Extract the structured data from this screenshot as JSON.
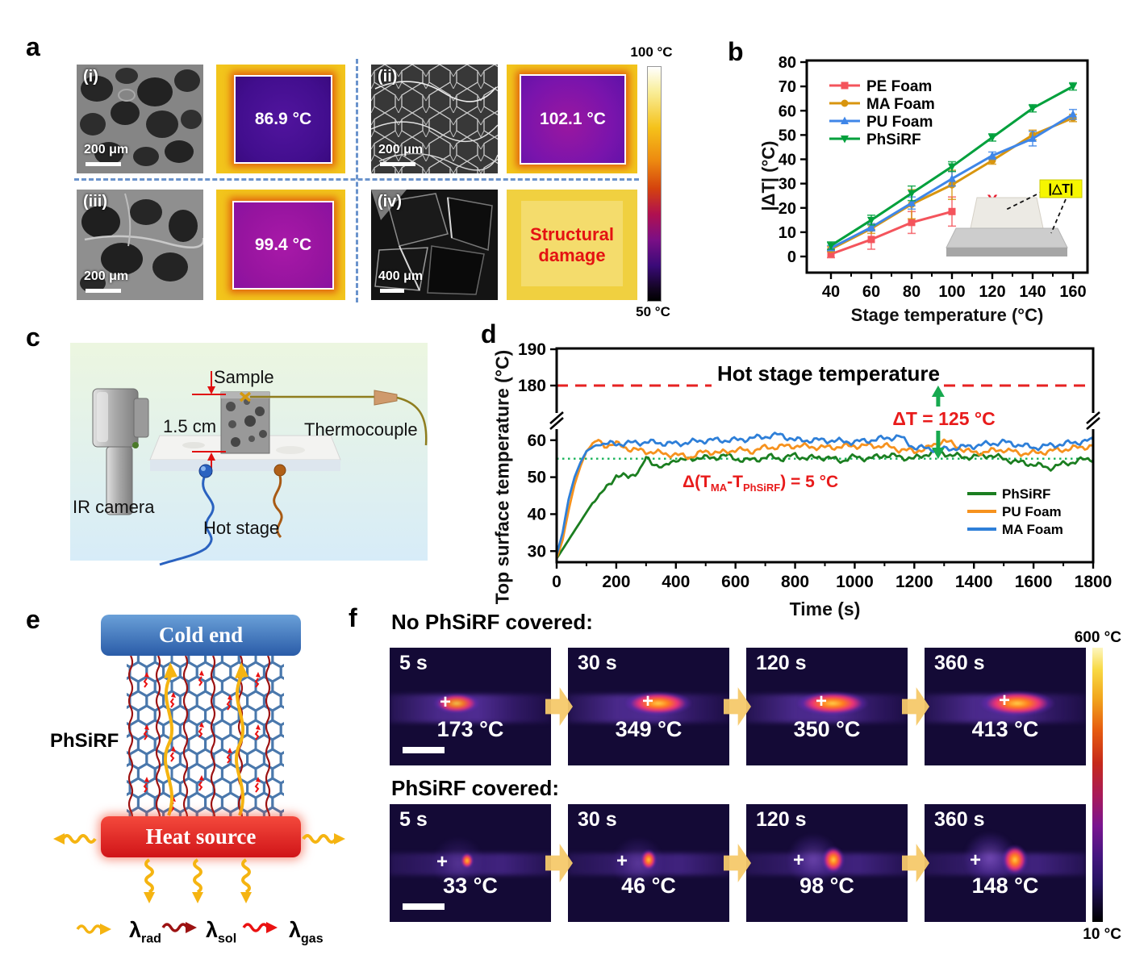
{
  "panels": {
    "a": {
      "label": "a",
      "images": [
        {
          "tag": "(i)",
          "scale_bar": "200 μm",
          "temp": "86.9 °C"
        },
        {
          "tag": "(ii)",
          "scale_bar": "200 μm",
          "temp": "102.1 °C"
        },
        {
          "tag": "(iii)",
          "scale_bar": "200 μm",
          "temp": "99.4 °C"
        },
        {
          "tag": "(iv)",
          "scale_bar": "400 μm",
          "damage": "Structural damage"
        }
      ],
      "colorbar": {
        "top": "100 °C",
        "bottom": "50 °C"
      }
    },
    "b": {
      "label": "b"
    },
    "c": {
      "label": "c",
      "labels": {
        "sample": "Sample",
        "thermocouple": "Thermocouple",
        "ir_camera": "IR camera",
        "hot_stage": "Hot stage",
        "dimension": "1.5 cm"
      }
    },
    "d": {
      "label": "d"
    },
    "e": {
      "label": "e",
      "cold_end": "Cold end",
      "heat_source": "Heat source",
      "material": "PhSiRF",
      "legend": [
        {
          "sym": "λ",
          "sub": "rad",
          "color": "#f5b411"
        },
        {
          "sym": "λ",
          "sub": "sol",
          "color": "#9c1212"
        },
        {
          "sym": "λ",
          "sub": "gas",
          "color": "#ea1111"
        }
      ]
    },
    "f": {
      "label": "f",
      "rows": [
        {
          "title": "No PhSiRF covered:",
          "frames": [
            {
              "time": "5 s",
              "temp": "173 °C"
            },
            {
              "time": "30 s",
              "temp": "349 °C"
            },
            {
              "time": "120 s",
              "temp": "350 °C"
            },
            {
              "time": "360 s",
              "temp": "413 °C"
            }
          ]
        },
        {
          "title": "PhSiRF covered:",
          "frames": [
            {
              "time": "5 s",
              "temp": "33 °C"
            },
            {
              "time": "30 s",
              "temp": "46 °C"
            },
            {
              "time": "120 s",
              "temp": "98 °C"
            },
            {
              "time": "360 s",
              "temp": "148 °C"
            }
          ]
        }
      ],
      "colorbar": {
        "top": "600 °C",
        "bottom": "10 °C"
      }
    }
  },
  "chart_data": [
    {
      "id": "b",
      "type": "line",
      "xlabel": "Stage temperature (°C)",
      "ylabel": "|ΔT| (°C)",
      "xlim": [
        28,
        167
      ],
      "ylim": [
        -6,
        81
      ],
      "xticks": [
        40,
        60,
        80,
        100,
        120,
        140,
        160
      ],
      "yticks": [
        0,
        10,
        20,
        30,
        40,
        50,
        60,
        70,
        80
      ],
      "legend_position": "top-left",
      "series": [
        {
          "name": "PE Foam",
          "color": "#f4545c",
          "marker": "square",
          "x": [
            40,
            60,
            80,
            100
          ],
          "y": [
            1,
            7,
            14,
            18.5
          ],
          "yerr": [
            1.5,
            4,
            4.5,
            6
          ]
        },
        {
          "name": "MA Foam",
          "color": "#d8950f",
          "marker": "circle",
          "x": [
            40,
            60,
            80,
            100,
            120,
            140,
            160
          ],
          "y": [
            3,
            11.5,
            21.5,
            29.5,
            39.5,
            50,
            57
          ],
          "yerr": [
            1,
            2,
            6,
            6,
            1.5,
            2,
            1.5
          ]
        },
        {
          "name": "PU Foam",
          "color": "#3f86e8",
          "marker": "triangle",
          "x": [
            40,
            60,
            80,
            100,
            120,
            140,
            160
          ],
          "y": [
            3.5,
            12,
            22,
            32,
            41.5,
            48.5,
            58.5
          ],
          "yerr": [
            1,
            1.5,
            2.5,
            3,
            1.5,
            3,
            2
          ]
        },
        {
          "name": "PhSiRF",
          "color": "#00a03c",
          "marker": "triangle-down",
          "x": [
            40,
            60,
            80,
            100,
            120,
            140,
            160
          ],
          "y": [
            4.5,
            15,
            26,
            37,
            49,
            61,
            70
          ],
          "yerr": [
            1.5,
            2,
            3,
            2,
            1.5,
            1.5,
            1.5
          ]
        }
      ],
      "annotations": {
        "failure_x": {
          "x": 120,
          "y": 23,
          "text": "X",
          "color": "#e8192c"
        },
        "inset_label": "|△T|"
      }
    },
    {
      "id": "d",
      "type": "line",
      "xlabel": "Time (s)",
      "ylabel": "Top surface temperature (°C)",
      "xlim": [
        0,
        1800
      ],
      "xticks": [
        0,
        200,
        400,
        600,
        800,
        1000,
        1200,
        1400,
        1600,
        1800
      ],
      "y_axis_break": {
        "lower_range": [
          27,
          63
        ],
        "upper_range": [
          176,
          191
        ],
        "lower_ticks": [
          30,
          40,
          50,
          60
        ],
        "upper_ticks": [
          180,
          190
        ]
      },
      "hot_stage_line": {
        "value": 180,
        "label": "Hot stage temperature",
        "color": "#e62222"
      },
      "reference_dotted_line": {
        "value": 55,
        "color": "#19b35a"
      },
      "annotations": {
        "delta_T": {
          "text": "ΔT = 125 °C",
          "color": "#e81b1b",
          "x": 1280
        },
        "delta_small": {
          "pre": "Δ(T",
          "sub1": "MA",
          "mid": "-T",
          "sub2": "PhSiRF",
          "post": ") = 5 °C",
          "color": "#e81b1b"
        }
      },
      "legend": [
        "PhSiRF",
        "PU Foam",
        "MA Foam"
      ],
      "series": [
        {
          "name": "PhSiRF",
          "color": "#1b7e20",
          "points": [
            [
              0,
              28
            ],
            [
              40,
              33
            ],
            [
              80,
              38
            ],
            [
              120,
              43
            ],
            [
              160,
              46.5
            ],
            [
              200,
              50.5
            ],
            [
              240,
              50
            ],
            [
              280,
              52
            ],
            [
              300,
              55
            ],
            [
              320,
              54
            ],
            [
              360,
              52.5
            ],
            [
              400,
              55
            ],
            [
              440,
              54.5
            ],
            [
              480,
              55.5
            ],
            [
              520,
              55
            ],
            [
              560,
              56
            ],
            [
              600,
              55
            ],
            [
              640,
              54.5
            ],
            [
              680,
              55
            ],
            [
              720,
              55.5
            ],
            [
              760,
              55
            ],
            [
              800,
              56
            ],
            [
              840,
              55
            ],
            [
              880,
              55.5
            ],
            [
              920,
              55
            ],
            [
              960,
              54.5
            ],
            [
              1000,
              55.5
            ],
            [
              1050,
              55
            ],
            [
              1100,
              56
            ],
            [
              1150,
              55.5
            ],
            [
              1200,
              55
            ],
            [
              1250,
              56.5
            ],
            [
              1280,
              57
            ],
            [
              1320,
              56
            ],
            [
              1360,
              55.5
            ],
            [
              1400,
              55.5
            ],
            [
              1450,
              56
            ],
            [
              1500,
              55
            ],
            [
              1550,
              54
            ],
            [
              1600,
              53.5
            ],
            [
              1650,
              52.5
            ],
            [
              1700,
              53.5
            ],
            [
              1750,
              54.5
            ],
            [
              1800,
              55
            ]
          ]
        },
        {
          "name": "PU Foam",
          "color": "#f6921e",
          "points": [
            [
              0,
              28
            ],
            [
              20,
              33
            ],
            [
              40,
              41
            ],
            [
              60,
              48
            ],
            [
              80,
              53
            ],
            [
              100,
              57
            ],
            [
              120,
              59
            ],
            [
              140,
              60
            ],
            [
              160,
              58.5
            ],
            [
              200,
              59
            ],
            [
              250,
              57.5
            ],
            [
              300,
              57
            ],
            [
              350,
              56.5
            ],
            [
              400,
              56
            ],
            [
              450,
              55.5
            ],
            [
              500,
              57
            ],
            [
              550,
              56.5
            ],
            [
              600,
              57.5
            ],
            [
              650,
              57
            ],
            [
              700,
              58
            ],
            [
              800,
              58.5
            ],
            [
              900,
              58
            ],
            [
              1000,
              58.5
            ],
            [
              1100,
              58.5
            ],
            [
              1150,
              57.5
            ],
            [
              1200,
              57
            ],
            [
              1250,
              58
            ],
            [
              1300,
              60
            ],
            [
              1350,
              58
            ],
            [
              1400,
              56.5
            ],
            [
              1450,
              57
            ],
            [
              1500,
              57.5
            ],
            [
              1550,
              56.5
            ],
            [
              1600,
              56.5
            ],
            [
              1700,
              57.5
            ],
            [
              1800,
              58.5
            ]
          ]
        },
        {
          "name": "MA Foam",
          "color": "#2e7fd8",
          "points": [
            [
              0,
              29
            ],
            [
              20,
              35
            ],
            [
              40,
              44
            ],
            [
              60,
              50
            ],
            [
              80,
              54
            ],
            [
              100,
              57
            ],
            [
              140,
              59
            ],
            [
              200,
              59
            ],
            [
              300,
              59.5
            ],
            [
              400,
              59
            ],
            [
              500,
              60
            ],
            [
              600,
              60
            ],
            [
              700,
              61
            ],
            [
              750,
              61.5
            ],
            [
              800,
              60
            ],
            [
              900,
              60
            ],
            [
              1000,
              59.5
            ],
            [
              1100,
              60.5
            ],
            [
              1150,
              61
            ],
            [
              1200,
              58
            ],
            [
              1300,
              57.5
            ],
            [
              1400,
              58.5
            ],
            [
              1500,
              59.5
            ],
            [
              1600,
              58
            ],
            [
              1700,
              59
            ],
            [
              1800,
              60
            ]
          ]
        }
      ]
    }
  ]
}
